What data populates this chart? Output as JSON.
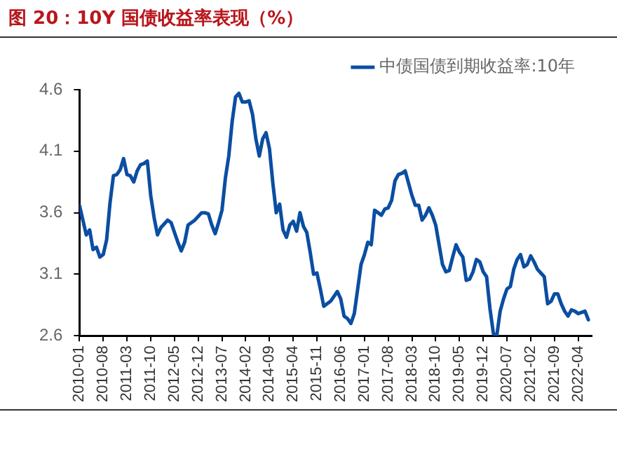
{
  "chart_data": {
    "type": "line",
    "title": "图 20：10Y 国债收益率表现（%）",
    "x": [
      "2010-01",
      "2010-02",
      "2010-03",
      "2010-04",
      "2010-05",
      "2010-06",
      "2010-07",
      "2010-08",
      "2010-09",
      "2010-10",
      "2010-11",
      "2010-12",
      "2011-01",
      "2011-02",
      "2011-03",
      "2011-04",
      "2011-05",
      "2011-06",
      "2011-07",
      "2011-08",
      "2011-09",
      "2011-10",
      "2011-11",
      "2011-12",
      "2012-01",
      "2012-02",
      "2012-03",
      "2012-04",
      "2012-05",
      "2012-06",
      "2012-07",
      "2012-08",
      "2012-09",
      "2012-10",
      "2012-11",
      "2012-12",
      "2013-01",
      "2013-02",
      "2013-03",
      "2013-04",
      "2013-05",
      "2013-06",
      "2013-07",
      "2013-08",
      "2013-09",
      "2013-10",
      "2013-11",
      "2013-12",
      "2014-01",
      "2014-02",
      "2014-03",
      "2014-04",
      "2014-05",
      "2014-06",
      "2014-07",
      "2014-08",
      "2014-09",
      "2014-10",
      "2014-11",
      "2014-12",
      "2015-01",
      "2015-02",
      "2015-03",
      "2015-04",
      "2015-05",
      "2015-06",
      "2015-07",
      "2015-08",
      "2015-09",
      "2015-10",
      "2015-11",
      "2015-12",
      "2016-01",
      "2016-02",
      "2016-03",
      "2016-04",
      "2016-05",
      "2016-06",
      "2016-07",
      "2016-08",
      "2016-09",
      "2016-10",
      "2016-11",
      "2016-12",
      "2017-01",
      "2017-02",
      "2017-03",
      "2017-04",
      "2017-05",
      "2017-06",
      "2017-07",
      "2017-08",
      "2017-09",
      "2017-10",
      "2017-11",
      "2017-12",
      "2018-01",
      "2018-02",
      "2018-03",
      "2018-04",
      "2018-05",
      "2018-06",
      "2018-07",
      "2018-08",
      "2018-09",
      "2018-10",
      "2018-11",
      "2018-12",
      "2019-01",
      "2019-02",
      "2019-03",
      "2019-04",
      "2019-05",
      "2019-06",
      "2019-07",
      "2019-08",
      "2019-09",
      "2019-10",
      "2019-11",
      "2019-12",
      "2020-01",
      "2020-02",
      "2020-03",
      "2020-04",
      "2020-05",
      "2020-06",
      "2020-07",
      "2020-08",
      "2020-09",
      "2020-10",
      "2020-11",
      "2020-12",
      "2021-01",
      "2021-02",
      "2021-03",
      "2021-04",
      "2021-05",
      "2021-06",
      "2021-07",
      "2021-08",
      "2021-09",
      "2021-10",
      "2021-11",
      "2021-12",
      "2022-01",
      "2022-02",
      "2022-03",
      "2022-04",
      "2022-05",
      "2022-06",
      "2022-07"
    ],
    "series": [
      {
        "name": "中债国债到期收益率:10年",
        "color": "#0b4ea2",
        "values": [
          3.66,
          3.54,
          3.42,
          3.46,
          3.3,
          3.32,
          3.24,
          3.26,
          3.38,
          3.68,
          3.9,
          3.91,
          3.95,
          4.04,
          3.91,
          3.9,
          3.85,
          3.94,
          3.99,
          4.0,
          4.02,
          3.74,
          3.56,
          3.42,
          3.48,
          3.51,
          3.54,
          3.52,
          3.44,
          3.36,
          3.29,
          3.36,
          3.5,
          3.52,
          3.54,
          3.57,
          3.6,
          3.6,
          3.59,
          3.5,
          3.43,
          3.52,
          3.62,
          3.88,
          4.06,
          4.34,
          4.54,
          4.57,
          4.5,
          4.5,
          4.51,
          4.4,
          4.2,
          4.06,
          4.2,
          4.25,
          4.12,
          3.84,
          3.6,
          3.67,
          3.46,
          3.4,
          3.5,
          3.53,
          3.45,
          3.6,
          3.49,
          3.44,
          3.28,
          3.1,
          3.11,
          2.98,
          2.84,
          2.86,
          2.88,
          2.92,
          2.96,
          2.9,
          2.76,
          2.74,
          2.7,
          2.78,
          2.98,
          3.18,
          3.26,
          3.36,
          3.34,
          3.62,
          3.6,
          3.58,
          3.63,
          3.64,
          3.7,
          3.86,
          3.91,
          3.92,
          3.94,
          3.84,
          3.74,
          3.66,
          3.66,
          3.54,
          3.58,
          3.64,
          3.58,
          3.5,
          3.34,
          3.18,
          3.12,
          3.13,
          3.24,
          3.34,
          3.28,
          3.24,
          3.05,
          3.06,
          3.12,
          3.22,
          3.2,
          3.12,
          3.08,
          2.82,
          2.62,
          2.6,
          2.8,
          2.9,
          2.98,
          3.0,
          3.14,
          3.22,
          3.26,
          3.16,
          3.18,
          3.25,
          3.2,
          3.14,
          3.11,
          3.08,
          2.86,
          2.88,
          2.94,
          2.94,
          2.86,
          2.8,
          2.76,
          2.81,
          2.8,
          2.78,
          2.79,
          2.8,
          2.73
        ]
      }
    ],
    "xlim": [
      "2010-01",
      "2022-08"
    ],
    "xticks": [
      "2010-01",
      "2010-08",
      "2011-03",
      "2011-10",
      "2012-05",
      "2012-12",
      "2013-07",
      "2014-02",
      "2014-09",
      "2015-04",
      "2015-11",
      "2016-06",
      "2017-01",
      "2017-08",
      "2018-03",
      "2018-10",
      "2019-05",
      "2019-12",
      "2020-07",
      "2021-02",
      "2021-09",
      "2022-04"
    ],
    "ylim": [
      2.6,
      4.6
    ],
    "yticks": [
      2.6,
      3.1,
      3.6,
      4.1,
      4.6
    ],
    "grid": false,
    "legend": "top",
    "marker": "none",
    "line_style": "solid"
  }
}
